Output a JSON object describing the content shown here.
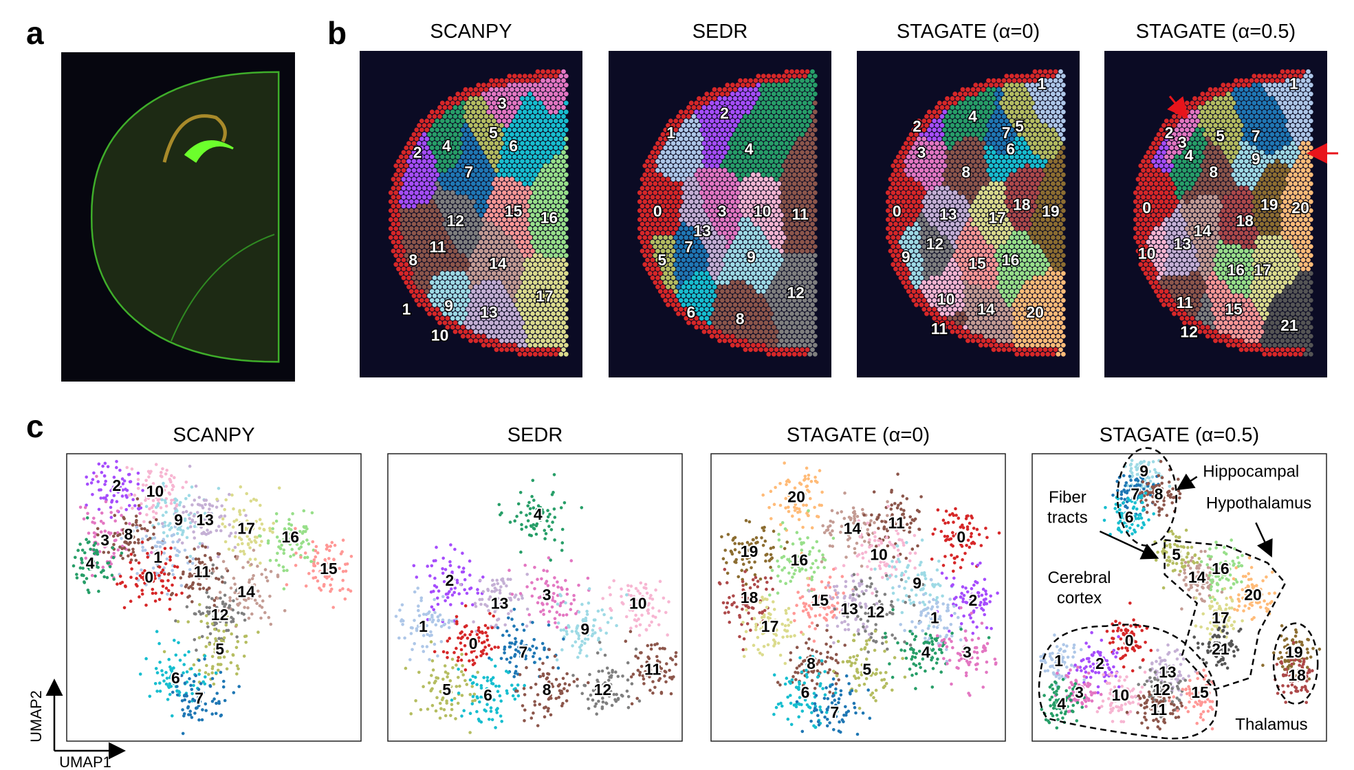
{
  "panel_labels": {
    "a": "a",
    "b": "b",
    "c": "c"
  },
  "palette": [
    "#d62728",
    "#aec7e8",
    "#a64dfc",
    "#e377c2",
    "#279e68",
    "#b5bd61",
    "#17becf",
    "#1f77b4",
    "#8c564b",
    "#9edae5",
    "#f7b6d2",
    "#8c564b",
    "#7f7f7f",
    "#c5b0d5",
    "#c49c94",
    "#ff9896",
    "#98df8a",
    "#dbdb8d",
    "#ad494a",
    "#8c6d31",
    "#ffbb78",
    "#555555"
  ],
  "spatial": {
    "methods": [
      {
        "title": "SCANPY",
        "clusters": [
          "3",
          "2",
          "4",
          "5",
          "6",
          "7",
          "12",
          "15",
          "16",
          "11",
          "8",
          "14",
          "17",
          "1",
          "9",
          "13",
          "10"
        ]
      },
      {
        "title": "SEDR",
        "clusters": [
          "2",
          "1",
          "4",
          "0",
          "3",
          "10",
          "11",
          "13",
          "7",
          "9",
          "5",
          "12",
          "6",
          "8"
        ]
      },
      {
        "title": "STAGATE (α=0)",
        "clusters": [
          "1",
          "4",
          "2",
          "7",
          "5",
          "3",
          "6",
          "8",
          "0",
          "13",
          "17",
          "18",
          "19",
          "12",
          "9",
          "15",
          "16",
          "10",
          "14",
          "20",
          "11"
        ]
      },
      {
        "title": "STAGATE (α=0.5)",
        "clusters": [
          "1",
          "2",
          "3",
          "4",
          "5",
          "7",
          "9",
          "8",
          "0",
          "19",
          "20",
          "14",
          "18",
          "13",
          "10",
          "16",
          "17",
          "11",
          "15",
          "21",
          "12"
        ]
      }
    ]
  },
  "umap": {
    "xlabel": "UMAP1",
    "ylabel": "UMAP2",
    "methods": [
      {
        "title": "SCANPY",
        "clusters": [
          "2",
          "10",
          "9",
          "13",
          "17",
          "16",
          "15",
          "3",
          "8",
          "4",
          "1",
          "0",
          "11",
          "14",
          "12",
          "5",
          "6",
          "7"
        ]
      },
      {
        "title": "SEDR",
        "clusters": [
          "4",
          "2",
          "13",
          "3",
          "10",
          "1",
          "0",
          "9",
          "7",
          "11",
          "5",
          "6",
          "8",
          "12"
        ]
      },
      {
        "title": "STAGATE (α=0)",
        "clusters": [
          "20",
          "14",
          "11",
          "0",
          "10",
          "19",
          "16",
          "9",
          "18",
          "15",
          "13",
          "12",
          "2",
          "1",
          "17",
          "4",
          "3",
          "8",
          "5",
          "6",
          "7"
        ]
      },
      {
        "title": "STAGATE (α=0.5)",
        "clusters": [
          "9",
          "7",
          "8",
          "6",
          "5",
          "14",
          "16",
          "20",
          "17",
          "21",
          "0",
          "1",
          "2",
          "13",
          "12",
          "15",
          "3",
          "10",
          "4",
          "11",
          "19",
          "18"
        ]
      }
    ],
    "annotations": {
      "hippocampal": "Hippocampal",
      "fiber_tracts_1": "Fiber",
      "fiber_tracts_2": "tracts",
      "hypothalamus": "Hypothalamus",
      "cerebral_cortex_1": "Cerebral",
      "cerebral_cortex_2": "cortex",
      "thalamus": "Thalamus"
    }
  }
}
